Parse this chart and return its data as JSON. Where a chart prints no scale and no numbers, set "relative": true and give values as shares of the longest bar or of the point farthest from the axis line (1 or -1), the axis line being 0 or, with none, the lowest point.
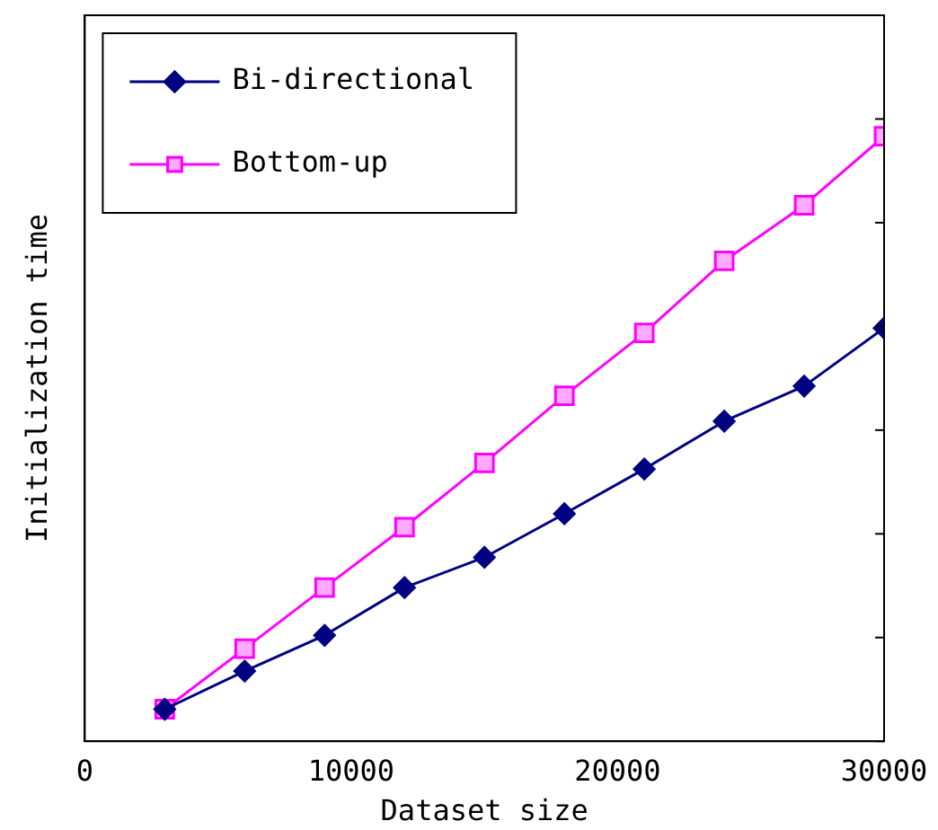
{
  "chart_data": {
    "type": "line",
    "xlabel": "Dataset size",
    "ylabel": "Initialization time",
    "relative": true,
    "x": [
      3000,
      6000,
      9000,
      12000,
      15000,
      18000,
      21000,
      24000,
      27000,
      30000
    ],
    "xlim": [
      0,
      30000
    ],
    "xticks": [
      0,
      10000,
      20000,
      30000
    ],
    "grid": false,
    "legend": "top left",
    "line_style": "solid",
    "series": [
      {
        "name": "Bi-directional",
        "color": "#000080",
        "marker": "diamond",
        "values": [
          0.053,
          0.116,
          0.175,
          0.254,
          0.304,
          0.376,
          0.45,
          0.529,
          0.587,
          0.683
        ]
      },
      {
        "name": "Bottom-up",
        "color": "#ff00ff",
        "marker": "square",
        "values": [
          0.053,
          0.153,
          0.254,
          0.354,
          0.46,
          0.571,
          0.675,
          0.794,
          0.886,
          1
        ]
      }
    ]
  }
}
